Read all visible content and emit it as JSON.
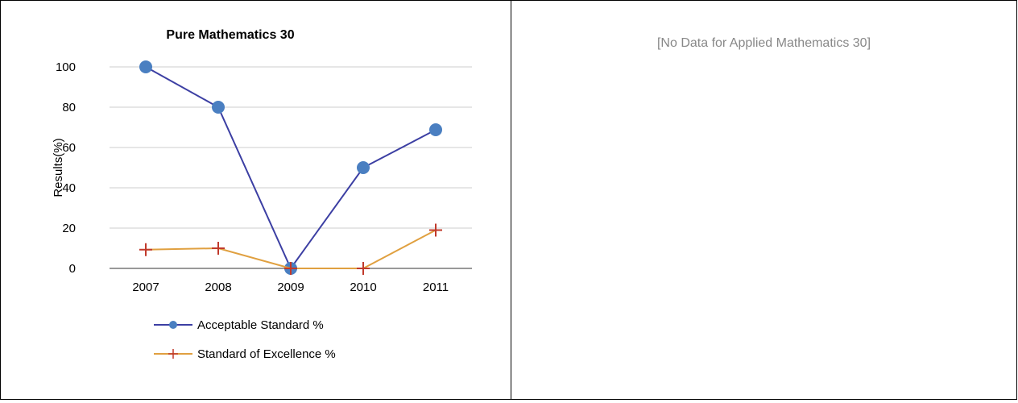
{
  "left_panel": {
    "chart_data": {
      "type": "line",
      "title": "Pure Mathematics 30",
      "xlabel": "",
      "ylabel": "Results(%)",
      "categories": [
        "2007",
        "2008",
        "2009",
        "2010",
        "2011"
      ],
      "ylim": [
        0,
        100
      ],
      "yticks": [
        0,
        20,
        40,
        60,
        80,
        100
      ],
      "grid": true,
      "legend": "bottom",
      "series": [
        {
          "name": "Acceptable Standard %",
          "values": [
            100,
            80,
            0,
            50,
            68.8
          ],
          "line_color": "#3c3fa3",
          "marker": "circle",
          "marker_color": "#4a7fc1"
        },
        {
          "name": "Standard of Excellence %",
          "values": [
            9.3,
            10,
            0,
            0,
            19
          ],
          "line_color": "#e0a040",
          "marker": "plus",
          "marker_color": "#c0392b"
        }
      ]
    }
  },
  "right_panel": {
    "message": "[No Data for Applied Mathematics 30]"
  }
}
